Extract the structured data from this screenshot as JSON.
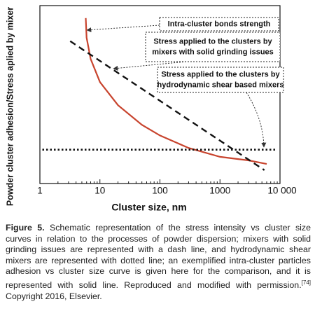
{
  "chart_data": {
    "type": "line",
    "x_label": "Cluster size, nm",
    "y_label": "Powder cluster adhesion/Stress aplied by mixer",
    "xscale": "log",
    "xlim": [
      1,
      10000
    ],
    "ylim": [
      0,
      100
    ],
    "xticks": [
      1,
      10,
      100,
      1000,
      {
        "value": 10000,
        "label": "10 000"
      }
    ],
    "minor_xticks": [
      2,
      3,
      4,
      5,
      6,
      7,
      8,
      9,
      20,
      30,
      40,
      50,
      60,
      70,
      80,
      90,
      200,
      300,
      400,
      500,
      600,
      700,
      800,
      900,
      2000,
      3000,
      4000,
      5000,
      6000,
      7000,
      8000,
      9000
    ],
    "series": [
      {
        "name": "Intra-cluster  bonds strength",
        "color": "#c8442e",
        "style": "solid",
        "x": [
          5.8,
          6,
          7,
          10,
          20,
          50,
          100,
          300,
          1000,
          3000,
          6000
        ],
        "values": [
          93,
          82,
          70,
          57,
          44,
          33,
          27,
          20,
          15,
          13,
          11
        ]
      },
      {
        "name": "Stress applied to the clusters by mixers with solid grinding issues",
        "color": "#111111",
        "style": "dashed",
        "x": [
          3.2,
          5500
        ],
        "values": [
          80,
          7.5
        ]
      },
      {
        "name": "Stress applied to the clusters by hydrodynamic shear based mixers",
        "color": "#111111",
        "style": "dotted",
        "x": [
          1.1,
          8800
        ],
        "values": [
          19,
          19
        ]
      }
    ],
    "annotations": [
      {
        "lines": [
          "Intra-cluster  bonds strength"
        ]
      },
      {
        "lines": [
          "Stress applied to the clusters by",
          "mixers with solid grinding issues"
        ]
      },
      {
        "lines": [
          "Stress applied to the clusters by",
          "hydrodynamic shear based mixers"
        ]
      }
    ]
  },
  "caption": {
    "label": "Figure 5.",
    "text": "Schematic representation of the stress intensity vs cluster size curves in relation to the processes of powder dispersion; mixers with solid grinding issues are represented with a dash line, and hydrodynamic shear mixers are represented with dotted line; an exemplified intra-cluster particles adhesion vs cluster size curve is given here for the comparison, and it is represented with solid line. Reproduced and modified with permission.",
    "reference": "[74]",
    "text_after": " Copyright 2016, Elsevier."
  }
}
